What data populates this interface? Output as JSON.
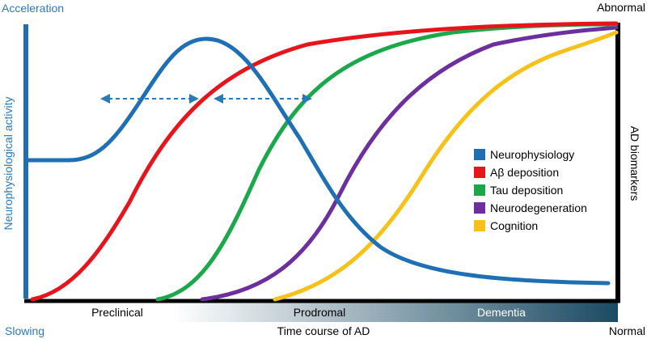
{
  "labels": {
    "acceleration": "Acceleration",
    "slowing": "Slowing",
    "abnormal": "Abnormal",
    "normal": "Normal",
    "y_left": "Neurophysiological activity",
    "y_right": "AD biomarkers",
    "x_title": "Time course of AD"
  },
  "stages": [
    "Preclinical",
    "Prodromal",
    "Dementia"
  ],
  "legend": [
    {
      "label": "Neurophysiology",
      "color": "#1f6fb5"
    },
    {
      "label": "Aβ deposition",
      "color": "#e8141b"
    },
    {
      "label": "Tau deposition",
      "color": "#1aa84a"
    },
    {
      "label": "Neurodegeneration",
      "color": "#6e2f9e"
    },
    {
      "label": "Cognition",
      "color": "#f6c21a"
    }
  ],
  "colors": {
    "accent": "#2a7ab8",
    "axis": "#000000",
    "arrow": "#2a7ab8",
    "stage_band_start": "#ffffff",
    "stage_band_end": "#1a4a63"
  }
}
